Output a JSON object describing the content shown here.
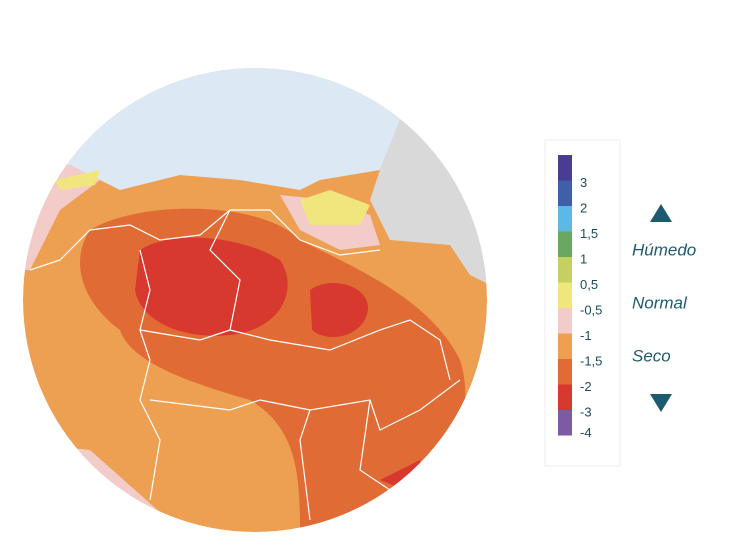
{
  "legend": {
    "items": [
      {
        "label": null,
        "color": "#4a3c8e"
      },
      {
        "label": "3",
        "color": "#3f5fa9"
      },
      {
        "label": "2",
        "color": "#5cb9e3"
      },
      {
        "label": "1,5",
        "color": "#69a862"
      },
      {
        "label": "1",
        "color": "#c6cf62"
      },
      {
        "label": "0,5",
        "color": "#f1e67e"
      },
      {
        "label": "-0,5",
        "color": "#f3cbc9"
      },
      {
        "label": "-1",
        "color": "#eda052"
      },
      {
        "label": "-1,5",
        "color": "#e06b35"
      },
      {
        "label": "-2",
        "color": "#d8392f"
      },
      {
        "label": "-3",
        "color": "#7b5aa6"
      }
    ],
    "last_label": "-4",
    "categories": [
      "Húmedo",
      "Normal",
      "Seco"
    ]
  }
}
